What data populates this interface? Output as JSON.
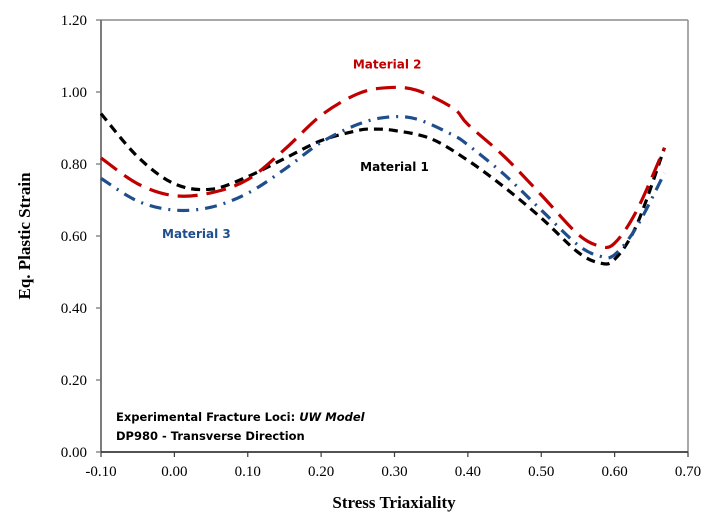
{
  "chart_data": {
    "type": "line",
    "title": "",
    "xlabel": "Stress Triaxiality",
    "ylabel": "Eq. Plastic Strain",
    "xlim": [
      -0.1,
      0.7
    ],
    "ylim": [
      0.0,
      1.2
    ],
    "x_ticks": [
      "-0.10",
      "0.00",
      "0.10",
      "0.20",
      "0.30",
      "0.40",
      "0.50",
      "0.60",
      "0.70"
    ],
    "y_ticks": [
      "0.00",
      "0.20",
      "0.40",
      "0.60",
      "0.80",
      "1.00",
      "1.20"
    ],
    "x_tick_values": [
      -0.1,
      0.0,
      0.1,
      0.2,
      0.3,
      0.4,
      0.5,
      0.6,
      0.7
    ],
    "y_tick_values": [
      0.0,
      0.2,
      0.4,
      0.6,
      0.8,
      1.0,
      1.2
    ],
    "grid": false,
    "legend": "none (inline labels)",
    "series": [
      {
        "name": "Material 1",
        "color": "#000000",
        "dash": "dash",
        "x": [
          -0.1,
          -0.05,
          0.0,
          0.05,
          0.1,
          0.15,
          0.2,
          0.25,
          0.27,
          0.3,
          0.35,
          0.4,
          0.45,
          0.5,
          0.55,
          0.58,
          0.6,
          0.63,
          0.668
        ],
        "y": [
          0.94,
          0.82,
          0.745,
          0.73,
          0.765,
          0.815,
          0.865,
          0.893,
          0.897,
          0.893,
          0.87,
          0.81,
          0.735,
          0.65,
          0.555,
          0.525,
          0.535,
          0.63,
          0.845
        ]
      },
      {
        "name": "Material 2",
        "color": "#C00000",
        "dash": "long-dash",
        "x": [
          -0.1,
          -0.05,
          0.0,
          0.05,
          0.1,
          0.15,
          0.2,
          0.25,
          0.29,
          0.33,
          0.38,
          0.4,
          0.45,
          0.5,
          0.55,
          0.58,
          0.6,
          0.63,
          0.668
        ],
        "y": [
          0.817,
          0.745,
          0.712,
          0.72,
          0.757,
          0.84,
          0.935,
          0.995,
          1.012,
          1.005,
          0.955,
          0.91,
          0.82,
          0.714,
          0.605,
          0.572,
          0.58,
          0.67,
          0.845
        ]
      },
      {
        "name": "Material 3",
        "color": "#1F4E8C",
        "dash": "dash-dot",
        "x": [
          -0.1,
          -0.05,
          0.0,
          0.05,
          0.1,
          0.15,
          0.2,
          0.25,
          0.29,
          0.33,
          0.38,
          0.4,
          0.45,
          0.5,
          0.55,
          0.58,
          0.6,
          0.63,
          0.668
        ],
        "y": [
          0.76,
          0.697,
          0.672,
          0.68,
          0.719,
          0.785,
          0.86,
          0.91,
          0.93,
          0.925,
          0.88,
          0.853,
          0.77,
          0.672,
          0.575,
          0.544,
          0.548,
          0.625,
          0.775
        ]
      }
    ],
    "annotations": [
      {
        "text": "Material 2",
        "x": 0.29,
        "y": 1.065,
        "color": "#C00000"
      },
      {
        "text": "Material 1",
        "x": 0.3,
        "y": 0.78,
        "color": "#000000"
      },
      {
        "text": "Material 3",
        "x": 0.03,
        "y": 0.595,
        "color": "#1F4E8C"
      }
    ],
    "notes": [
      {
        "text": "Experimental Fracture Loci: ",
        "italic_part": "UW Model"
      },
      {
        "text": "DP980 - Transverse Direction"
      }
    ]
  }
}
